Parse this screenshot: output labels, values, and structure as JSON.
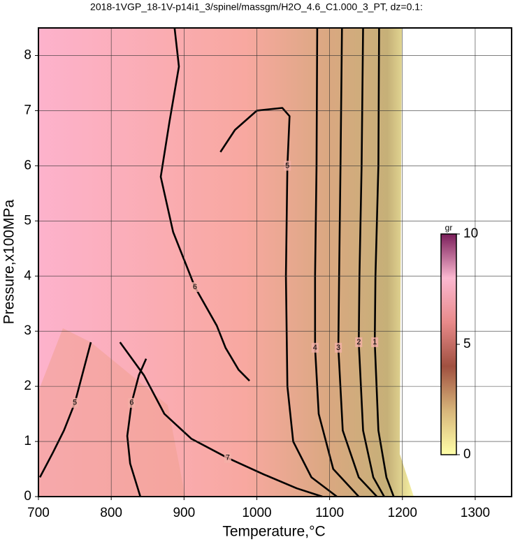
{
  "chart_data": {
    "type": "contour",
    "title": "2018-1VGP_18-1V-p14i1_3/spinel/massgm/H2O_4.6_C1.000_3_PT, dz=0.1:",
    "xlabel": "Temperature,°C",
    "ylabel": "Pressure,x100MPa",
    "xlim": [
      700,
      1350
    ],
    "ylim": [
      0,
      8.5
    ],
    "xticks": [
      700,
      800,
      900,
      1000,
      1100,
      1200,
      1300
    ],
    "yticks": [
      0,
      1,
      2,
      3,
      4,
      5,
      6,
      7,
      8
    ],
    "grid": true,
    "contours": [
      {
        "level": 6,
        "x": [
          887,
          893,
          880,
          868,
          885,
          915,
          945,
          957,
          975,
          990
        ],
        "y": [
          8.5,
          7.8,
          6.8,
          5.8,
          4.8,
          3.8,
          3.1,
          2.7,
          2.3,
          2.1
        ]
      },
      {
        "level": 5,
        "x": [
          950,
          970,
          1000,
          1035,
          1045,
          1042,
          1040,
          1042,
          1050,
          1075,
          1110
        ],
        "y": [
          6.25,
          6.65,
          7.0,
          7.05,
          6.9,
          6.0,
          4.0,
          2.0,
          1.0,
          0.35,
          0
        ]
      },
      {
        "level": 4,
        "x": [
          1083,
          1082,
          1080,
          1080,
          1085,
          1105,
          1140
        ],
        "y": [
          8.5,
          6.0,
          4.0,
          2.7,
          1.5,
          0.5,
          0
        ]
      },
      {
        "level": 3,
        "x": [
          1117,
          1115,
          1113,
          1112,
          1118,
          1140,
          1165
        ],
        "y": [
          8.5,
          6.0,
          4.0,
          2.7,
          1.2,
          0.35,
          0
        ]
      },
      {
        "level": 2,
        "x": [
          1146,
          1144,
          1141,
          1140,
          1146,
          1160,
          1175
        ],
        "y": [
          8.5,
          6.0,
          4.0,
          2.8,
          1.2,
          0.35,
          0
        ]
      },
      {
        "level": 1,
        "x": [
          1168,
          1167,
          1163,
          1162,
          1167,
          1178,
          1188
        ],
        "y": [
          8.5,
          6.0,
          4.0,
          2.8,
          1.2,
          0.35,
          0
        ]
      },
      {
        "level": 5,
        "x": [
          702,
          720,
          735,
          750,
          762,
          772
        ],
        "y": [
          0.35,
          0.8,
          1.2,
          1.7,
          2.3,
          2.8
        ]
      },
      {
        "level": 6,
        "x": [
          840,
          826,
          822,
          828,
          838,
          848
        ],
        "y": [
          0,
          0.6,
          1.1,
          1.7,
          2.2,
          2.5
        ]
      },
      {
        "level": 7,
        "x": [
          812,
          845,
          873,
          910,
          960,
          1010,
          1055,
          1090
        ],
        "y": [
          2.8,
          2.2,
          1.5,
          1.05,
          0.7,
          0.4,
          0.15,
          0
        ]
      }
    ],
    "colorbar": {
      "label": "gr",
      "lim": [
        0,
        10
      ],
      "ticks": [
        0,
        5,
        10
      ],
      "colors": [
        "#ffffa8",
        "#d7b57a",
        "#a05040",
        "#e88a8a",
        "#fbb8d0",
        "#7a1e5a"
      ]
    }
  }
}
